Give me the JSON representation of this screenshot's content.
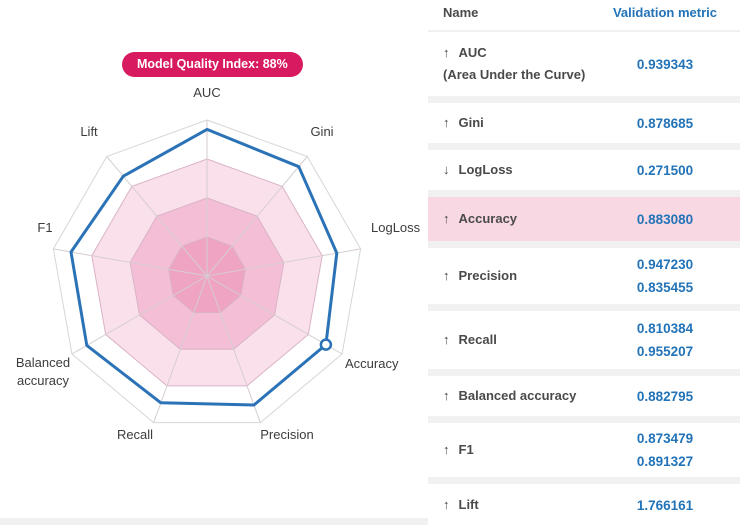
{
  "badge": {
    "label": "Model Quality Index: 88%",
    "bg_color": "#D81B60",
    "text_color": "#FFFFFF"
  },
  "chart_data": {
    "type": "radar",
    "title": "Model quality radar chart",
    "axes": [
      "AUC",
      "Gini",
      "LogLoss",
      "Accuracy",
      "Precision",
      "Recall",
      "Balanced accuracy",
      "F1",
      "Lift"
    ],
    "values": [
      0.94,
      0.915,
      0.845,
      0.88,
      0.88,
      0.865,
      0.89,
      0.885,
      0.835
    ],
    "scale_max": 1.0,
    "rings": [
      1.0,
      0.75,
      0.5,
      0.25
    ],
    "ring_fills": [
      "#FFFFFF",
      "#FAE0EB",
      "#F4BFD6",
      "#EFA4C4"
    ],
    "ring_stroke_outer": "#D6D6D6",
    "ring_stroke_inner": "#D9B3C6",
    "spoke_color": "#D6CDD2",
    "line_color": "#2B73B6",
    "marker_axis": "Accuracy",
    "legend_position": "none",
    "grid": true
  },
  "table": {
    "name_header": "Name",
    "metric_header": "Validation metric",
    "value_color": "#2273B8",
    "header_metric_color": "#2273B8",
    "highlight_color": "#F8D8E2",
    "rows": [
      {
        "direction": "up",
        "name": "AUC",
        "subtitle": "(Area Under the Curve)",
        "values": [
          "0.939343"
        ],
        "highlighted": false
      },
      {
        "direction": "up",
        "name": "Gini",
        "values": [
          "0.878685"
        ],
        "highlighted": false
      },
      {
        "direction": "down",
        "name": "LogLoss",
        "values": [
          "0.271500"
        ],
        "highlighted": false
      },
      {
        "direction": "up",
        "name": "Accuracy",
        "values": [
          "0.883080"
        ],
        "highlighted": true
      },
      {
        "direction": "up",
        "name": "Precision",
        "values": [
          "0.947230",
          "0.835455"
        ],
        "highlighted": false
      },
      {
        "direction": "up",
        "name": "Recall",
        "values": [
          "0.810384",
          "0.955207"
        ],
        "highlighted": false
      },
      {
        "direction": "up",
        "name": "Balanced accuracy",
        "values": [
          "0.882795"
        ],
        "highlighted": false
      },
      {
        "direction": "up",
        "name": "F1",
        "values": [
          "0.873479",
          "0.891327"
        ],
        "highlighted": false
      },
      {
        "direction": "up",
        "name": "Lift",
        "values": [
          "1.766161"
        ],
        "highlighted": false
      }
    ]
  }
}
